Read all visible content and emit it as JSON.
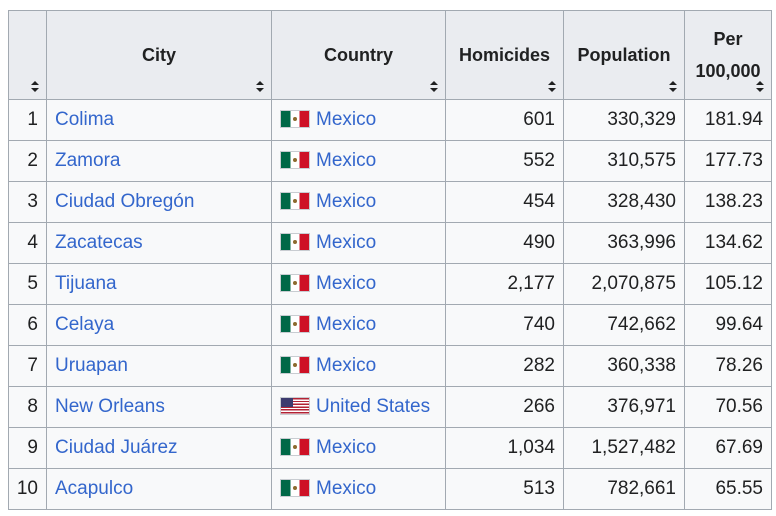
{
  "table": {
    "headers": {
      "rank": "",
      "city": "City",
      "country": "Country",
      "homicides": "Homicides",
      "population": "Population",
      "per_line1": "Per",
      "per_line2": "100,000"
    },
    "rows": [
      {
        "rank": "1",
        "city": "Colima",
        "flag": "mexico-flag-icon",
        "country": "Mexico",
        "homicides": "601",
        "population": "330,329",
        "per": "181.94"
      },
      {
        "rank": "2",
        "city": "Zamora",
        "flag": "mexico-flag-icon",
        "country": "Mexico",
        "homicides": "552",
        "population": "310,575",
        "per": "177.73"
      },
      {
        "rank": "3",
        "city": "Ciudad Obregón",
        "flag": "mexico-flag-icon",
        "country": "Mexico",
        "homicides": "454",
        "population": "328,430",
        "per": "138.23"
      },
      {
        "rank": "4",
        "city": "Zacatecas",
        "flag": "mexico-flag-icon",
        "country": "Mexico",
        "homicides": "490",
        "population": "363,996",
        "per": "134.62"
      },
      {
        "rank": "5",
        "city": "Tijuana",
        "flag": "mexico-flag-icon",
        "country": "Mexico",
        "homicides": "2,177",
        "population": "2,070,875",
        "per": "105.12"
      },
      {
        "rank": "6",
        "city": "Celaya",
        "flag": "mexico-flag-icon",
        "country": "Mexico",
        "homicides": "740",
        "population": "742,662",
        "per": "99.64"
      },
      {
        "rank": "7",
        "city": "Uruapan",
        "flag": "mexico-flag-icon",
        "country": "Mexico",
        "homicides": "282",
        "population": "360,338",
        "per": "78.26"
      },
      {
        "rank": "8",
        "city": "New Orleans",
        "flag": "united-states-flag-icon",
        "country": "United States",
        "homicides": "266",
        "population": "376,971",
        "per": "70.56"
      },
      {
        "rank": "9",
        "city": "Ciudad Juárez",
        "flag": "mexico-flag-icon",
        "country": "Mexico",
        "homicides": "1,034",
        "population": "1,527,482",
        "per": "67.69"
      },
      {
        "rank": "10",
        "city": "Acapulco",
        "flag": "mexico-flag-icon",
        "country": "Mexico",
        "homicides": "513",
        "population": "782,661",
        "per": "65.55"
      }
    ]
  },
  "colors": {
    "link": "#3366cc",
    "header_bg": "#eaecf0",
    "cell_bg": "#f8f9fa",
    "border": "#a2a9b1"
  }
}
